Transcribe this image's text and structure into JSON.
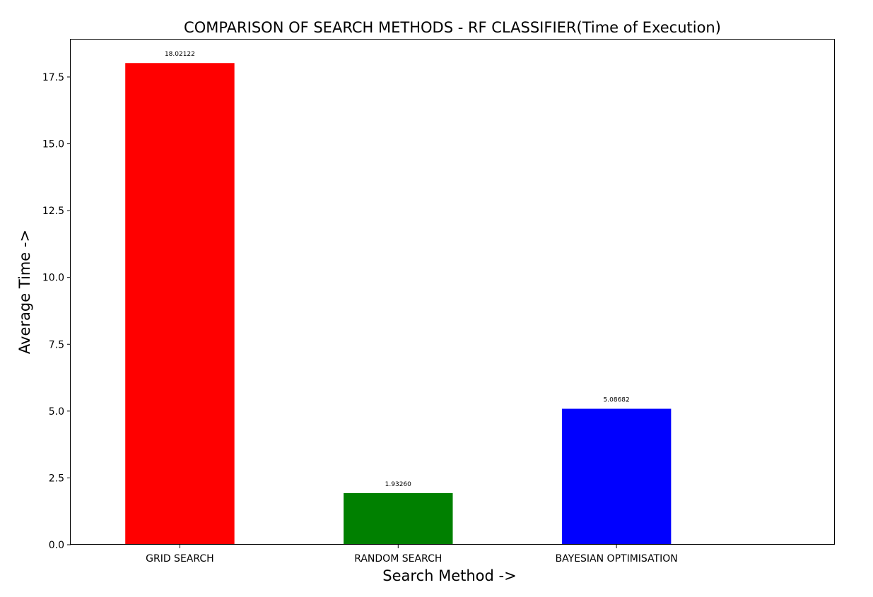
{
  "chart_data": {
    "type": "bar",
    "title": "COMPARISON OF SEARCH METHODS - RF CLASSIFIER(Time of Execution)",
    "xlabel": "Search Method ->",
    "ylabel": "Average Time ->",
    "categories": [
      "GRID SEARCH",
      "RANDOM SEARCH",
      "BAYESIAN OPTIMISATION"
    ],
    "values": [
      18.02122,
      1.9326,
      5.08682
    ],
    "data_labels": [
      "18.02122",
      "1.93260",
      "5.08682"
    ],
    "colors": [
      "#ff0000",
      "#008000",
      "#0000ff"
    ],
    "ylim": [
      0,
      18.9
    ],
    "yticks": [
      0.0,
      2.5,
      5.0,
      7.5,
      10.0,
      12.5,
      15.0,
      17.5
    ],
    "ytick_labels": [
      "0.0",
      "2.5",
      "5.0",
      "7.5",
      "10.0",
      "12.5",
      "15.0",
      "17.5"
    ],
    "grid": false,
    "legend": "none"
  }
}
